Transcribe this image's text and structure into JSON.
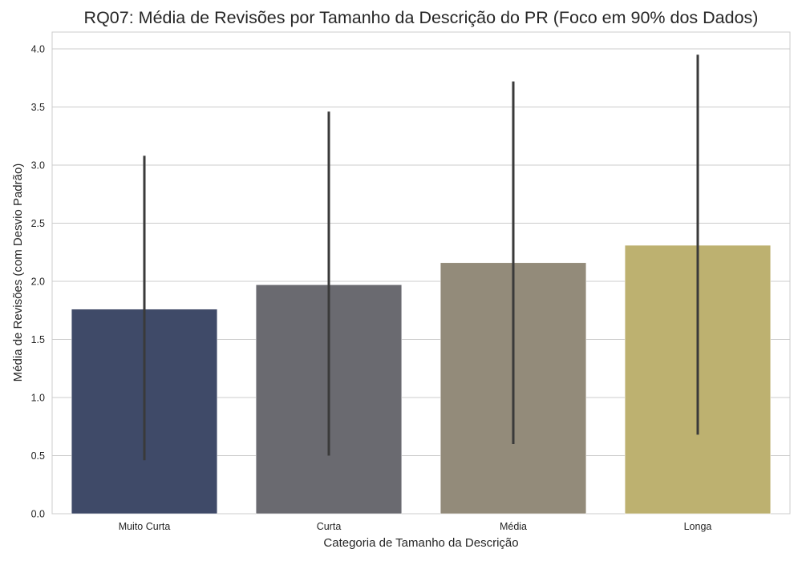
{
  "chart_data": {
    "type": "bar",
    "title": "RQ07: Média de Revisões por Tamanho da Descrição do PR (Foco em 90% dos Dados)",
    "xlabel": "Categoria de Tamanho da Descrição",
    "ylabel": "Média de Revisões (com Desvio Padrão)",
    "categories": [
      "Muito Curta",
      "Curta",
      "Média",
      "Longa"
    ],
    "values": [
      1.76,
      1.97,
      2.16,
      2.31
    ],
    "error_low": [
      0.46,
      0.5,
      0.6,
      0.68
    ],
    "error_high": [
      3.08,
      3.46,
      3.72,
      3.95
    ],
    "colors": [
      "#3f4a68",
      "#6a6a70",
      "#938b7a",
      "#bdb170"
    ],
    "error_color": "#3a3a3a",
    "ylim": [
      0,
      4.15
    ],
    "yticks": [
      "0.0",
      "0.5",
      "1.0",
      "1.5",
      "2.0",
      "2.5",
      "3.0",
      "3.5",
      "4.0"
    ],
    "grid": "horizontal"
  }
}
